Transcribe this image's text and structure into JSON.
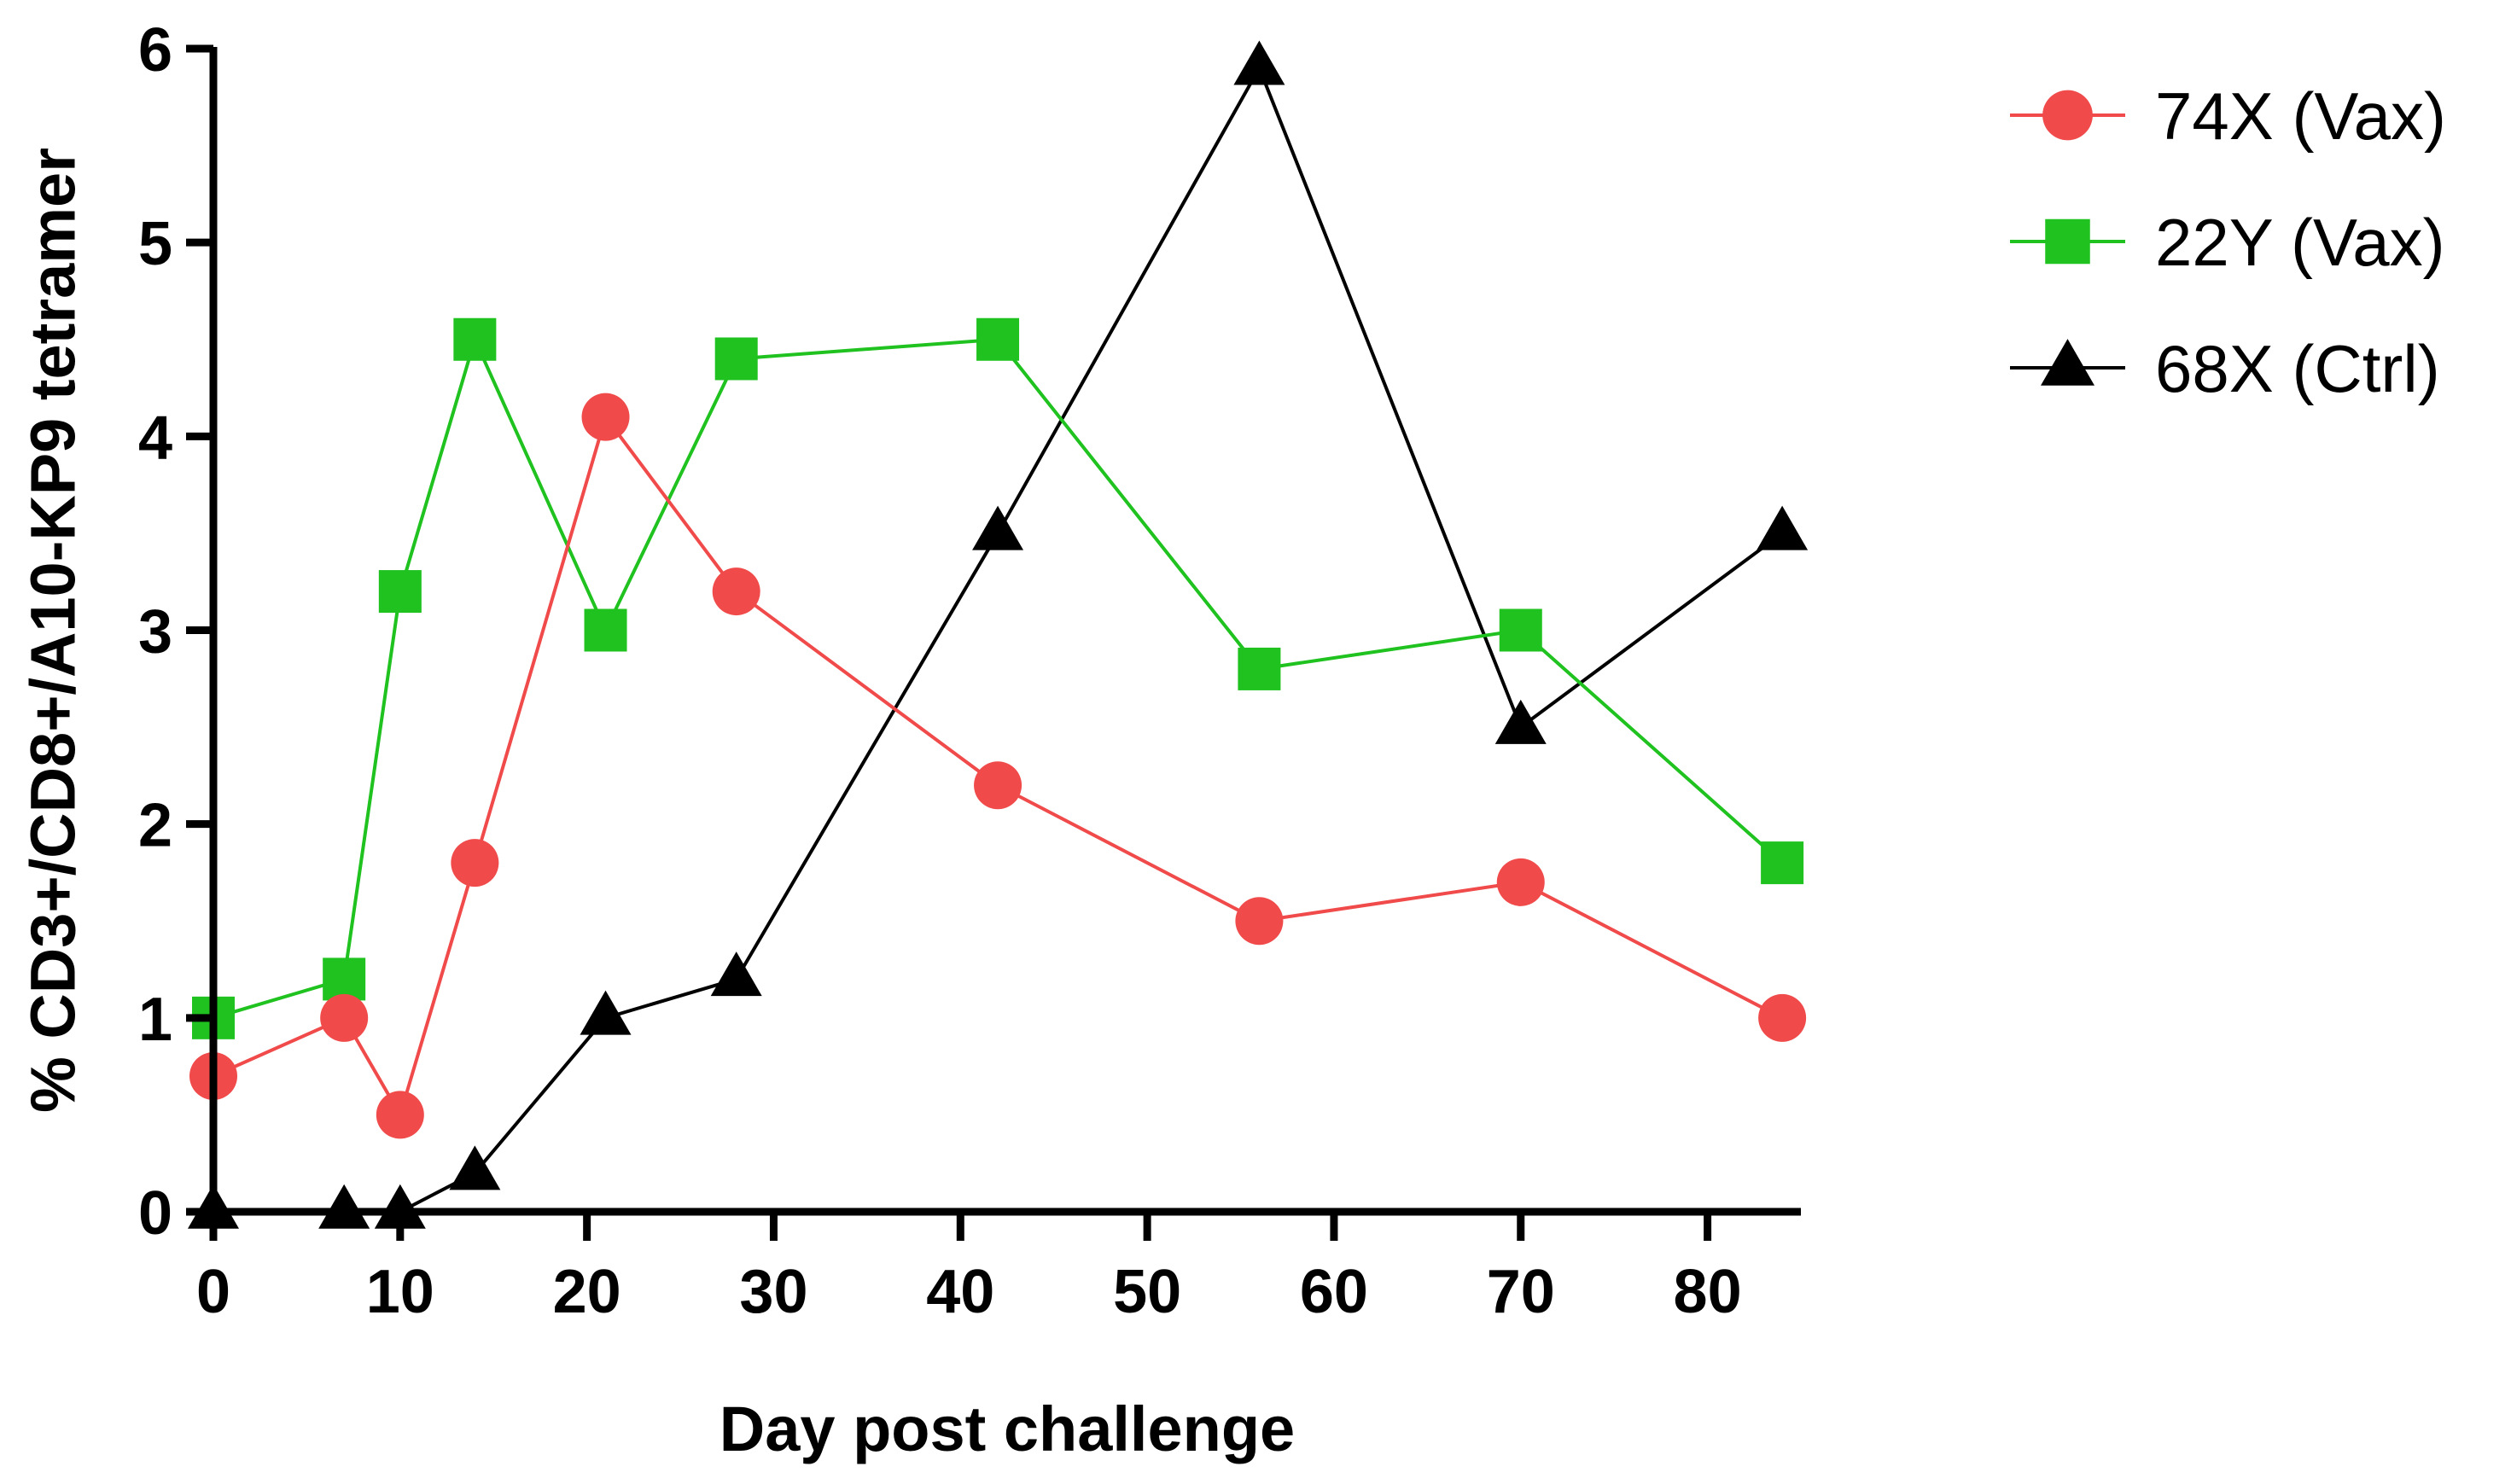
{
  "chart_data": {
    "type": "line",
    "title": "",
    "xlabel": "Day post challenge",
    "ylabel": "% CD3+/CD8+/A10-KP9 tetramer",
    "xlim": [
      0,
      85
    ],
    "ylim": [
      0,
      6
    ],
    "xticks": [
      0,
      10,
      20,
      30,
      40,
      50,
      60,
      70,
      80
    ],
    "yticks": [
      0,
      1,
      2,
      3,
      4,
      5,
      6
    ],
    "grid": false,
    "legend_position": "top-right, outside plot",
    "series": [
      {
        "name": "74X (Vax)",
        "color": "#f04a4a",
        "marker": "circle",
        "x": [
          0,
          7,
          10,
          14,
          21,
          28,
          42,
          56,
          70,
          84
        ],
        "y": [
          0.7,
          1.0,
          0.5,
          1.8,
          4.1,
          3.2,
          2.2,
          1.5,
          1.7,
          1.0
        ]
      },
      {
        "name": "22Y (Vax)",
        "color": "#1fc21f",
        "marker": "square",
        "x": [
          0,
          7,
          10,
          14,
          21,
          28,
          42,
          56,
          70,
          84
        ],
        "y": [
          1.0,
          1.2,
          3.2,
          4.5,
          3.0,
          4.4,
          4.5,
          2.8,
          3.0,
          1.8
        ]
      },
      {
        "name": "68X (Ctrl)",
        "color": "#000000",
        "marker": "triangle",
        "x": [
          0,
          7,
          10,
          14,
          21,
          28,
          42,
          56,
          70,
          84
        ],
        "y": [
          0.0,
          0.0,
          0.0,
          0.2,
          1.0,
          1.2,
          3.5,
          5.9,
          2.5,
          3.5
        ]
      }
    ]
  }
}
